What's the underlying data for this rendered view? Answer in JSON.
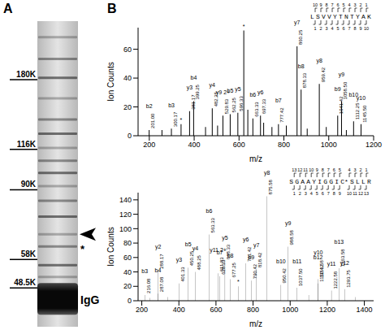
{
  "chart_data": [
    {
      "type": "gel",
      "panel": "A",
      "log": "y",
      "ylim": [
        38,
        260
      ],
      "markers": [
        {
          "value": 180,
          "label": "180K"
        },
        {
          "value": 116,
          "label": "116K"
        },
        {
          "value": 90,
          "label": "90K"
        },
        {
          "value": 58,
          "label": "58K"
        },
        {
          "value": 48.5,
          "label": "48.5K"
        }
      ],
      "bands": [
        235,
        205,
        182,
        160,
        140,
        128,
        117,
        108,
        100,
        92,
        84,
        76,
        68,
        63,
        56,
        52
      ],
      "smear": [
        41,
        50
      ],
      "annotations": [
        {
          "value": 45,
          "label": "IgG"
        },
        {
          "value": 63,
          "label": "*"
        },
        {
          "value": 68,
          "marker": "arrow"
        }
      ]
    },
    {
      "type": "bar",
      "panel": "B",
      "x_label": "m/z",
      "y_label": "Ion Counts",
      "xlim": [
        150,
        1200
      ],
      "xticks": [
        200,
        400,
        600,
        800,
        1000,
        1200
      ],
      "ylim": [
        0,
        75
      ],
      "yticks": [
        0,
        20,
        40,
        60
      ],
      "sequence": "LSVVYTNTYAK",
      "ladder": {
        "y": [
          10,
          9,
          8,
          7,
          6,
          5,
          4,
          3,
          2,
          1
        ],
        "b": [
          1,
          2,
          3,
          4,
          5,
          6,
          7,
          8,
          9,
          10
        ]
      },
      "x": [
        201.0,
        258.1,
        300.17,
        343.2,
        381.17,
        399.25,
        452.3,
        482.25,
        506.0,
        529.83,
        562.25,
        596.33,
        622.83,
        640.8,
        663.33,
        697.33,
        711.4,
        748.3,
        777.42,
        812.4,
        860.25,
        878.33,
        905.5,
        959.42,
        990.5,
        1041.42,
        1058.5,
        1080.0,
        1112.25,
        1145.5
      ],
      "values": [
        4,
        4,
        5,
        8,
        17,
        24,
        6,
        19,
        7,
        14,
        15,
        16,
        73,
        18,
        12,
        14,
        9,
        6,
        8,
        7,
        62,
        32,
        5,
        36,
        6,
        14,
        24,
        4,
        10,
        8
      ],
      "labels": [
        "b2",
        null,
        "b3",
        "*",
        "y3",
        "b4",
        null,
        "y4",
        null,
        "y9 2+",
        "b5",
        "y5",
        "*",
        null,
        "b6",
        "y6",
        null,
        null,
        "b7",
        null,
        "y7",
        "b8",
        null,
        "y8",
        null,
        "b9",
        "y9",
        null,
        "b10",
        "y10"
      ],
      "x_labels": [
        "201.00",
        null,
        "300.17",
        null,
        "381.17",
        "399.25",
        null,
        "482.25",
        null,
        "529.83",
        "562.25",
        "596.33",
        null,
        null,
        "663.33",
        "697.33",
        null,
        null,
        "777.42",
        null,
        "860.25",
        "878.33",
        null,
        "959.42",
        null,
        "1041.42",
        "1058.50",
        null,
        "1112.25",
        "1145.50"
      ]
    },
    {
      "type": "bar",
      "x_label": "m/z",
      "y_label": "Ion Counts",
      "xlim": [
        180,
        1450
      ],
      "xticks": [
        200,
        400,
        600,
        800,
        1000,
        1200,
        1400
      ],
      "ylim": [
        0,
        150
      ],
      "yticks": [
        0,
        20,
        40,
        60,
        80,
        100,
        120,
        140
      ],
      "sequence": "SGAAYIGGIC*SLLR",
      "ladder": {
        "y": [
          13,
          12,
          11,
          10,
          9,
          8,
          7,
          6,
          5,
          4,
          3,
          2,
          1
        ],
        "b": [
          1,
          2,
          3,
          4,
          5,
          6,
          7,
          8,
          9,
          10,
          11,
          12,
          13
        ]
      },
      "x": [
        216.08,
        245.0,
        287.08,
        288.17,
        340.0,
        401.33,
        450.25,
        488.25,
        563.33,
        611.83,
        620.33,
        648.33,
        677.25,
        720.0,
        761.42,
        790.42,
        818.42,
        875.58,
        950.42,
        988.58,
        1037.5,
        1100.0,
        1150.42,
        1151.58,
        1222.58,
        1263.58,
        1293.75,
        1350.0
      ],
      "values": [
        8,
        4,
        10,
        42,
        5,
        24,
        46,
        40,
        92,
        38,
        34,
        55,
        30,
        20,
        52,
        28,
        44,
        145,
        22,
        75,
        18,
        8,
        24,
        30,
        14,
        45,
        16,
        5
      ],
      "labels": [
        "b3",
        null,
        "b4",
        "y2",
        null,
        "y3",
        "b5",
        "y4",
        "b6",
        "y11 2+",
        "b7",
        "y5",
        "b8",
        "*",
        "y6",
        "b9",
        "y7",
        "y8",
        "b10",
        "y9",
        "b11",
        null,
        "b12",
        "y10",
        "y11",
        "b13",
        "y12",
        null
      ],
      "x_labels": [
        "216.08",
        null,
        "287.08",
        "288.17",
        null,
        "401.33",
        "450.25",
        "488.25",
        "563.33",
        "611.83",
        "620.33",
        "648.33",
        "677.25",
        null,
        "761.42",
        "790.42",
        "818.42",
        "875.58",
        "950.42",
        "988.58",
        "1037.50",
        null,
        "1150.42",
        "1151.58",
        "1222.58",
        "1263.58",
        "1293.75",
        null
      ]
    }
  ]
}
